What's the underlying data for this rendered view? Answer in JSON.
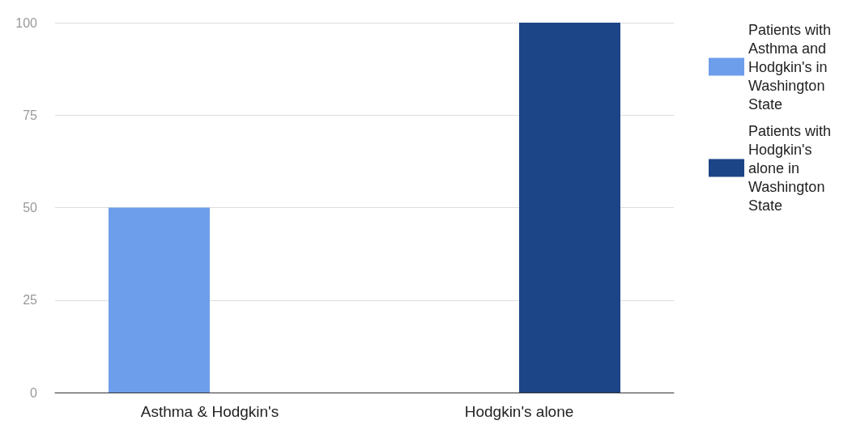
{
  "chart_data": {
    "type": "bar",
    "categories": [
      "Asthma & Hodgkin's",
      "Hodgkin's alone"
    ],
    "series": [
      {
        "name": "Patients with Asthma and Hodgkin's in Washington State",
        "color": "#6d9eeb",
        "values": [
          50,
          null
        ]
      },
      {
        "name": "Patients with Hodgkin's alone in Washington State",
        "color": "#1c4587",
        "values": [
          null,
          100
        ]
      }
    ],
    "ylim": [
      0,
      100
    ],
    "yticks": [
      0,
      25,
      50,
      75,
      100
    ],
    "grid": "y",
    "legend": "right"
  }
}
